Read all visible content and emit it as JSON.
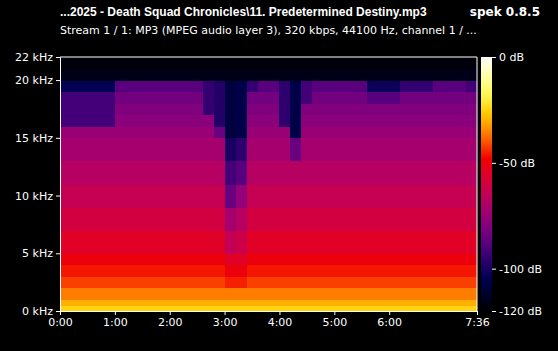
{
  "chart_data": {
    "type": "heatmap",
    "title": "...2025 - Death Squad Chronicles\\11. Predetermined Destiny.mp3",
    "annotations": [
      "spek 0.8.5"
    ],
    "subtitle": "Stream 1 / 1: MP3 (MPEG audio layer 3), 320 kbps, 44100 Hz, channel 1 / ...",
    "xlim": [
      0,
      456
    ],
    "xticks": [
      {
        "value": 0,
        "label": "0:00"
      },
      {
        "value": 60,
        "label": "1:00"
      },
      {
        "value": 120,
        "label": "2:00"
      },
      {
        "value": 180,
        "label": "3:00"
      },
      {
        "value": 240,
        "label": "4:00"
      },
      {
        "value": 300,
        "label": "5:00"
      },
      {
        "value": 360,
        "label": "6:00"
      },
      {
        "value": 456,
        "label": "7:36"
      }
    ],
    "ylim": [
      0,
      22
    ],
    "yticks": [
      {
        "value": 0,
        "label": "0 kHz"
      },
      {
        "value": 5,
        "label": "5 kHz"
      },
      {
        "value": 10,
        "label": "10 kHz"
      },
      {
        "value": 15,
        "label": "15 kHz"
      },
      {
        "value": 20,
        "label": "20 kHz"
      },
      {
        "value": 22,
        "label": "22 kHz"
      }
    ],
    "x_bins": [
      0,
      12,
      24,
      36,
      48,
      60,
      72,
      84,
      96,
      108,
      120,
      132,
      144,
      156,
      168,
      180,
      192,
      204,
      216,
      228,
      240,
      252,
      264,
      276,
      288,
      300,
      312,
      324,
      336,
      348,
      360,
      372,
      384,
      396,
      408,
      420,
      432,
      444,
      456
    ],
    "y_bins": [
      0,
      0.5,
      1,
      2,
      3,
      4,
      5,
      7,
      9,
      11,
      13,
      15,
      16,
      17,
      18,
      19,
      20,
      21,
      22
    ],
    "values": [
      [
        -25,
        -25,
        -25,
        -25,
        -25,
        -25,
        -25,
        -25,
        -25,
        -25,
        -25,
        -25,
        -25,
        -25,
        -25,
        -25,
        -25,
        -25,
        -25,
        -25,
        -25,
        -25,
        -25,
        -25,
        -25,
        -25,
        -25,
        -25,
        -25,
        -25,
        -25,
        -25,
        -25,
        -25,
        -25,
        -25,
        -25,
        -25
      ],
      [
        -30,
        -30,
        -30,
        -30,
        -30,
        -30,
        -30,
        -30,
        -30,
        -30,
        -30,
        -30,
        -30,
        -30,
        -30,
        -30,
        -30,
        -30,
        -30,
        -30,
        -30,
        -30,
        -30,
        -30,
        -30,
        -30,
        -30,
        -30,
        -30,
        -30,
        -30,
        -30,
        -30,
        -30,
        -30,
        -30,
        -30,
        -30
      ],
      [
        -36,
        -36,
        -36,
        -36,
        -36,
        -36,
        -36,
        -36,
        -36,
        -36,
        -36,
        -36,
        -36,
        -36,
        -36,
        -36,
        -36,
        -36,
        -36,
        -36,
        -36,
        -36,
        -36,
        -36,
        -36,
        -36,
        -36,
        -36,
        -36,
        -36,
        -36,
        -36,
        -36,
        -36,
        -36,
        -36,
        -36,
        -36
      ],
      [
        -42,
        -42,
        -42,
        -42,
        -42,
        -42,
        -42,
        -42,
        -42,
        -42,
        -42,
        -42,
        -42,
        -42,
        -42,
        -45,
        -45,
        -42,
        -42,
        -42,
        -42,
        -42,
        -42,
        -42,
        -42,
        -42,
        -42,
        -42,
        -42,
        -42,
        -42,
        -42,
        -42,
        -42,
        -42,
        -42,
        -42,
        -42
      ],
      [
        -46,
        -46,
        -46,
        -46,
        -46,
        -46,
        -46,
        -46,
        -46,
        -46,
        -46,
        -46,
        -46,
        -46,
        -46,
        -50,
        -50,
        -46,
        -46,
        -46,
        -46,
        -46,
        -46,
        -46,
        -46,
        -46,
        -46,
        -46,
        -46,
        -46,
        -46,
        -46,
        -46,
        -46,
        -46,
        -46,
        -46,
        -46
      ],
      [
        -50,
        -50,
        -50,
        -50,
        -50,
        -50,
        -50,
        -50,
        -50,
        -50,
        -50,
        -50,
        -50,
        -50,
        -50,
        -55,
        -55,
        -50,
        -50,
        -50,
        -50,
        -50,
        -50,
        -50,
        -50,
        -50,
        -50,
        -50,
        -50,
        -50,
        -50,
        -50,
        -50,
        -50,
        -50,
        -50,
        -50,
        -50
      ],
      [
        -55,
        -55,
        -55,
        -55,
        -55,
        -55,
        -55,
        -55,
        -55,
        -55,
        -55,
        -55,
        -55,
        -55,
        -55,
        -65,
        -62,
        -55,
        -55,
        -55,
        -55,
        -55,
        -55,
        -55,
        -55,
        -55,
        -55,
        -55,
        -55,
        -55,
        -55,
        -55,
        -55,
        -55,
        -55,
        -55,
        -55,
        -55
      ],
      [
        -60,
        -60,
        -60,
        -60,
        -60,
        -60,
        -60,
        -60,
        -60,
        -60,
        -60,
        -60,
        -60,
        -60,
        -60,
        -72,
        -68,
        -60,
        -60,
        -60,
        -60,
        -60,
        -60,
        -60,
        -60,
        -60,
        -60,
        -60,
        -60,
        -60,
        -60,
        -60,
        -60,
        -60,
        -60,
        -60,
        -60,
        -60
      ],
      [
        -64,
        -64,
        -64,
        -64,
        -64,
        -64,
        -64,
        -64,
        -64,
        -64,
        -64,
        -64,
        -64,
        -64,
        -64,
        -85,
        -76,
        -64,
        -64,
        -64,
        -64,
        -64,
        -64,
        -64,
        -64,
        -64,
        -64,
        -64,
        -64,
        -64,
        -64,
        -64,
        -64,
        -64,
        -64,
        -64,
        -64,
        -64
      ],
      [
        -68,
        -68,
        -68,
        -68,
        -68,
        -68,
        -68,
        -68,
        -68,
        -68,
        -68,
        -68,
        -68,
        -68,
        -68,
        -92,
        -88,
        -68,
        -68,
        -68,
        -68,
        -68,
        -68,
        -68,
        -68,
        -68,
        -68,
        -68,
        -68,
        -68,
        -68,
        -68,
        -68,
        -68,
        -68,
        -68,
        -68,
        -68
      ],
      [
        -72,
        -72,
        -72,
        -72,
        -72,
        -72,
        -72,
        -72,
        -72,
        -72,
        -72,
        -72,
        -72,
        -72,
        -72,
        -100,
        -96,
        -72,
        -72,
        -72,
        -72,
        -85,
        -72,
        -72,
        -72,
        -72,
        -72,
        -72,
        -72,
        -72,
        -72,
        -72,
        -72,
        -72,
        -72,
        -72,
        -72,
        -72
      ],
      [
        -75,
        -75,
        -75,
        -75,
        -75,
        -75,
        -75,
        -75,
        -75,
        -75,
        -75,
        -75,
        -75,
        -75,
        -85,
        -108,
        -106,
        -75,
        -75,
        -75,
        -75,
        -106,
        -75,
        -75,
        -75,
        -75,
        -75,
        -75,
        -75,
        -75,
        -75,
        -75,
        -75,
        -75,
        -75,
        -75,
        -75,
        -75
      ],
      [
        -92,
        -92,
        -92,
        -92,
        -92,
        -78,
        -78,
        -78,
        -78,
        -78,
        -78,
        -78,
        -78,
        -78,
        -98,
        -108,
        -106,
        -78,
        -78,
        -78,
        -96,
        -106,
        -78,
        -78,
        -78,
        -78,
        -78,
        -78,
        -78,
        -78,
        -78,
        -78,
        -78,
        -78,
        -78,
        -78,
        -78,
        -78
      ],
      [
        -92,
        -92,
        -92,
        -92,
        -92,
        -80,
        -80,
        -80,
        -80,
        -80,
        -80,
        -80,
        -80,
        -95,
        -98,
        -108,
        -106,
        -80,
        -80,
        -80,
        -96,
        -106,
        -80,
        -80,
        -80,
        -80,
        -80,
        -80,
        -80,
        -80,
        -80,
        -80,
        -80,
        -80,
        -80,
        -80,
        -80,
        -80
      ],
      [
        -92,
        -92,
        -92,
        -92,
        -92,
        -83,
        -83,
        -83,
        -83,
        -83,
        -83,
        -83,
        -83,
        -95,
        -98,
        -108,
        -106,
        -83,
        -83,
        -83,
        -96,
        -106,
        -92,
        -83,
        -83,
        -83,
        -83,
        -83,
        -88,
        -88,
        -88,
        -83,
        -83,
        -83,
        -83,
        -83,
        -83,
        -83
      ],
      [
        -104,
        -104,
        -104,
        -104,
        -104,
        -88,
        -88,
        -88,
        -88,
        -88,
        -88,
        -88,
        -88,
        -95,
        -98,
        -108,
        -106,
        -95,
        -88,
        -88,
        -96,
        -106,
        -92,
        -88,
        -88,
        -88,
        -88,
        -88,
        -102,
        -102,
        -102,
        -95,
        -95,
        -95,
        -88,
        -88,
        -88,
        -92
      ],
      [
        -116,
        -116,
        -116,
        -116,
        -116,
        -116,
        -116,
        -116,
        -116,
        -116,
        -116,
        -116,
        -116,
        -116,
        -116,
        -116,
        -116,
        -116,
        -116,
        -116,
        -116,
        -116,
        -116,
        -116,
        -116,
        -116,
        -116,
        -116,
        -116,
        -116,
        -116,
        -116,
        -116,
        -116,
        -116,
        -116,
        -116,
        -116
      ],
      [
        -118,
        -118,
        -118,
        -118,
        -118,
        -118,
        -118,
        -118,
        -118,
        -118,
        -118,
        -118,
        -118,
        -118,
        -118,
        -118,
        -118,
        -118,
        -118,
        -118,
        -118,
        -118,
        -118,
        -118,
        -118,
        -118,
        -118,
        -118,
        -118,
        -118,
        -118,
        -118,
        -118,
        -118,
        -118,
        -118,
        -118,
        -118
      ]
    ],
    "colorbar_range": [
      -120,
      0
    ],
    "colorbar_ticks": [
      {
        "value": 0,
        "label": "0 dB"
      },
      {
        "value": -50,
        "label": "-50 dB"
      },
      {
        "value": -100,
        "label": "-100 dB"
      },
      {
        "value": -120,
        "label": "-120 dB"
      }
    ]
  }
}
